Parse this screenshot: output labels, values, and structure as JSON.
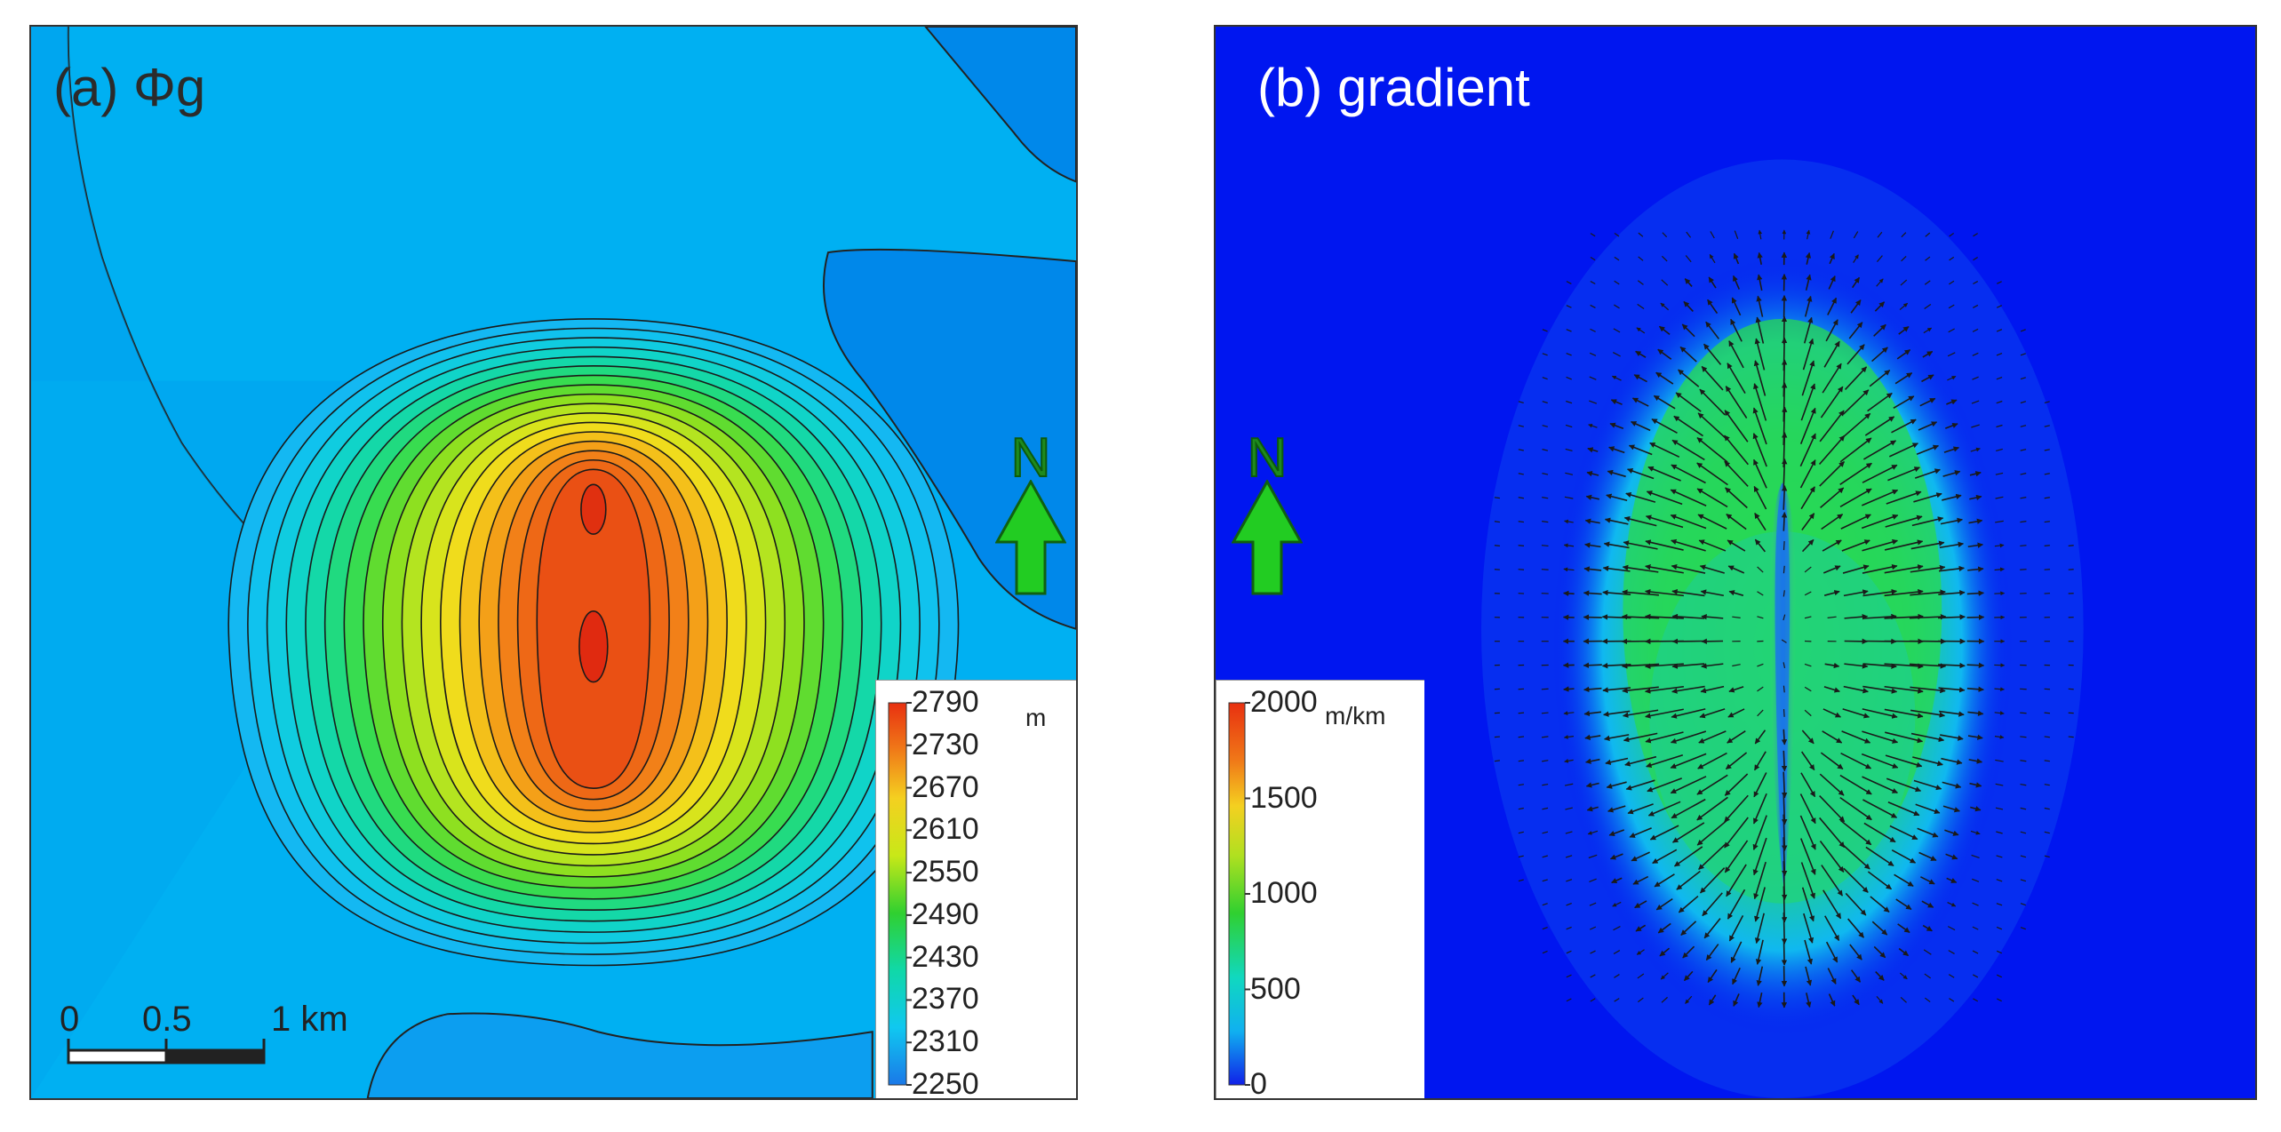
{
  "panel_a": {
    "label": "(a) Φg",
    "north_label": "N",
    "legend": {
      "unit": "m",
      "ticks": [
        "2790",
        "2730",
        "2670",
        "2610",
        "2550",
        "2490",
        "2430",
        "2370",
        "2310",
        "2250"
      ],
      "min": 2250,
      "max": 2790
    },
    "scale_bar": {
      "labels": [
        "0",
        "0.5",
        "1 km"
      ]
    }
  },
  "panel_b": {
    "label": "(b) gradient",
    "north_label": "N",
    "legend": {
      "unit": "m/km",
      "ticks": [
        "2000",
        "1500",
        "1000",
        "500",
        "0"
      ],
      "min": 0,
      "max": 2000
    }
  },
  "colors": {
    "background_a": "#00b2f4",
    "background_b": "#0016f0",
    "north_arrow": "#22cc22"
  }
}
